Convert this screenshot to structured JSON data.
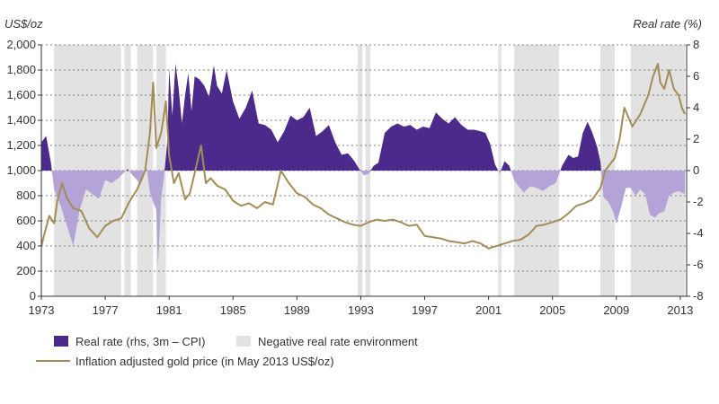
{
  "chart_data": {
    "type": "area",
    "left_unit": "US$/oz",
    "right_unit": "Real rate (%)",
    "x_ticks": [
      "1973",
      "1977",
      "1981",
      "1985",
      "1989",
      "1993",
      "1997",
      "2001",
      "2005",
      "2009",
      "2013"
    ],
    "x_range": [
      1973,
      2013.4
    ],
    "left_axis": {
      "ticks": [
        "0",
        "200",
        "400",
        "600",
        "800",
        "1,000",
        "1,200",
        "1,400",
        "1,600",
        "1,800",
        "2,000"
      ],
      "ylim": [
        0,
        2000
      ]
    },
    "right_axis": {
      "ticks": [
        "-8",
        "-6",
        "-4",
        "-2",
        "0",
        "2",
        "4",
        "6",
        "8"
      ],
      "ylim": [
        -8,
        8
      ]
    },
    "grid": "horizontal dotted",
    "colors": {
      "real_rate": "#4b2a8c",
      "real_rate_negative": "#b3a3d6",
      "shading": "#e2e2e2",
      "gold": "#a48c58"
    },
    "legend": [
      {
        "key": "real_rate",
        "label": "Real rate (rhs, 3m – CPI)"
      },
      {
        "key": "shading",
        "label": "Negative real rate environment"
      },
      {
        "key": "gold",
        "label": "Inflation adjusted gold price (in May 2013 US$/oz)"
      }
    ],
    "negative_real_rate_periods": [
      [
        1973.8,
        1978.0
      ],
      [
        1978.2,
        1978.6
      ],
      [
        1979.0,
        1980.0
      ],
      [
        1980.2,
        1980.8
      ],
      [
        1992.8,
        1993.1
      ],
      [
        1993.3,
        1993.6
      ],
      [
        2001.6,
        2001.8
      ],
      [
        2002.6,
        2005.4
      ],
      [
        2008.0,
        2008.9
      ],
      [
        2009.9,
        2013.3
      ]
    ],
    "series": [
      {
        "name": "Real rate (rhs, 3m – CPI)",
        "axis": "right",
        "x": [
          1973.0,
          1973.3,
          1973.6,
          1973.8,
          1974.2,
          1974.6,
          1975.0,
          1975.4,
          1975.8,
          1976.2,
          1976.6,
          1977.0,
          1977.4,
          1977.8,
          1978.0,
          1978.4,
          1978.8,
          1979.0,
          1979.2,
          1979.6,
          1979.8,
          1980.0,
          1980.2,
          1980.3,
          1980.5,
          1980.7,
          1980.9,
          1981.0,
          1981.2,
          1981.4,
          1981.6,
          1981.8,
          1982.0,
          1982.2,
          1982.4,
          1982.6,
          1982.9,
          1983.2,
          1983.5,
          1983.8,
          1984.0,
          1984.3,
          1984.6,
          1985.0,
          1985.4,
          1985.8,
          1986.2,
          1986.6,
          1987.0,
          1987.4,
          1987.8,
          1988.2,
          1988.6,
          1989.0,
          1989.4,
          1989.8,
          1990.2,
          1990.6,
          1991.0,
          1991.4,
          1991.8,
          1992.2,
          1992.6,
          1992.9,
          1993.2,
          1993.5,
          1993.8,
          1994.1,
          1994.5,
          1994.9,
          1995.3,
          1995.7,
          1996.1,
          1996.5,
          1996.9,
          1997.3,
          1997.7,
          1998.1,
          1998.5,
          1998.9,
          1999.3,
          1999.7,
          2000.1,
          2000.5,
          2000.8,
          2001.1,
          2001.4,
          2001.7,
          2002.0,
          2002.3,
          2002.6,
          2002.8,
          2003.2,
          2003.6,
          2004.0,
          2004.4,
          2004.8,
          2005.2,
          2005.6,
          2006.0,
          2006.3,
          2006.6,
          2006.9,
          2007.2,
          2007.5,
          2007.8,
          2008.0,
          2008.2,
          2008.5,
          2008.8,
          2009.0,
          2009.3,
          2009.6,
          2009.9,
          2010.2,
          2010.5,
          2010.8,
          2011.1,
          2011.4,
          2011.7,
          2012.0,
          2012.3,
          2012.6,
          2012.9,
          2013.3
        ],
        "values": [
          1.8,
          2.2,
          0.5,
          -1.2,
          -2.2,
          -3.5,
          -4.8,
          -2.5,
          -1.2,
          -1.5,
          -1.8,
          -0.6,
          -0.8,
          -0.5,
          -0.3,
          0.1,
          -0.4,
          -0.6,
          -0.9,
          0.1,
          -1.4,
          -2.0,
          -2.5,
          -6.2,
          -1.8,
          -0.2,
          2.0,
          6.5,
          3.5,
          6.8,
          5.2,
          3.0,
          4.8,
          6.2,
          3.8,
          6.0,
          5.8,
          5.4,
          4.7,
          6.7,
          5.4,
          4.9,
          6.4,
          4.4,
          3.3,
          4.0,
          5.1,
          3.0,
          2.9,
          2.6,
          1.8,
          2.5,
          3.5,
          3.2,
          3.4,
          4.0,
          2.2,
          2.5,
          2.9,
          1.8,
          1.0,
          1.1,
          0.6,
          0.1,
          -0.3,
          -0.2,
          0.3,
          0.5,
          2.4,
          2.8,
          3.0,
          2.8,
          2.9,
          2.6,
          2.8,
          2.7,
          3.7,
          3.3,
          3.0,
          3.4,
          2.9,
          2.6,
          2.6,
          2.5,
          2.4,
          1.7,
          0.4,
          -0.2,
          0.6,
          0.3,
          -0.6,
          -0.9,
          -1.4,
          -1.0,
          -1.1,
          -1.3,
          -1.0,
          -0.8,
          0.3,
          1.0,
          0.8,
          0.9,
          2.4,
          3.1,
          2.4,
          1.5,
          0.6,
          -1.7,
          -2.0,
          -2.6,
          -3.4,
          -2.3,
          -1.1,
          -1.1,
          -1.6,
          -1.2,
          -1.5,
          -2.8,
          -3.0,
          -2.7,
          -2.6,
          -1.6,
          -1.4,
          -1.3,
          -1.5
        ]
      },
      {
        "name": "Inflation adjusted gold price (in May 2013 US$/oz)",
        "axis": "left",
        "x": [
          1973.0,
          1973.2,
          1973.5,
          1973.8,
          1974.0,
          1974.3,
          1974.6,
          1975.0,
          1975.5,
          1976.0,
          1976.5,
          1977.0,
          1977.5,
          1978.0,
          1978.5,
          1979.0,
          1979.5,
          1979.8,
          1980.0,
          1980.2,
          1980.5,
          1980.8,
          1981.0,
          1981.3,
          1981.6,
          1982.0,
          1982.3,
          1982.6,
          1983.0,
          1983.3,
          1983.6,
          1984.0,
          1984.5,
          1985.0,
          1985.5,
          1986.0,
          1986.5,
          1987.0,
          1987.5,
          1988.0,
          1988.5,
          1989.0,
          1989.5,
          1990.0,
          1990.5,
          1991.0,
          1991.5,
          1992.0,
          1992.5,
          1993.0,
          1993.5,
          1994.0,
          1994.5,
          1995.0,
          1995.5,
          1996.0,
          1996.5,
          1997.0,
          1997.5,
          1998.0,
          1998.5,
          1999.0,
          1999.5,
          2000.0,
          2000.5,
          2001.0,
          2001.5,
          2002.0,
          2002.5,
          2003.0,
          2003.5,
          2004.0,
          2004.5,
          2005.0,
          2005.5,
          2006.0,
          2006.5,
          2007.0,
          2007.5,
          2008.0,
          2008.3,
          2008.6,
          2008.9,
          2009.2,
          2009.5,
          2010.0,
          2010.5,
          2011.0,
          2011.3,
          2011.6,
          2011.75,
          2012.0,
          2012.3,
          2012.6,
          2012.9,
          2013.1,
          2013.3
        ],
        "values": [
          400,
          500,
          640,
          580,
          760,
          900,
          780,
          700,
          680,
          540,
          470,
          560,
          600,
          620,
          750,
          850,
          1000,
          1300,
          1700,
          1180,
          1300,
          1550,
          1120,
          900,
          980,
          770,
          820,
          980,
          1200,
          900,
          940,
          880,
          850,
          760,
          720,
          740,
          700,
          750,
          730,
          1000,
          900,
          820,
          790,
          730,
          700,
          650,
          620,
          590,
          570,
          560,
          590,
          610,
          600,
          610,
          590,
          560,
          570,
          480,
          470,
          460,
          440,
          430,
          420,
          440,
          420,
          380,
          400,
          420,
          440,
          450,
          490,
          560,
          570,
          590,
          610,
          660,
          720,
          740,
          770,
          860,
          1000,
          1050,
          1100,
          1250,
          1500,
          1350,
          1450,
          1600,
          1750,
          1850,
          1700,
          1650,
          1800,
          1650,
          1600,
          1500,
          1450
        ]
      }
    ]
  }
}
